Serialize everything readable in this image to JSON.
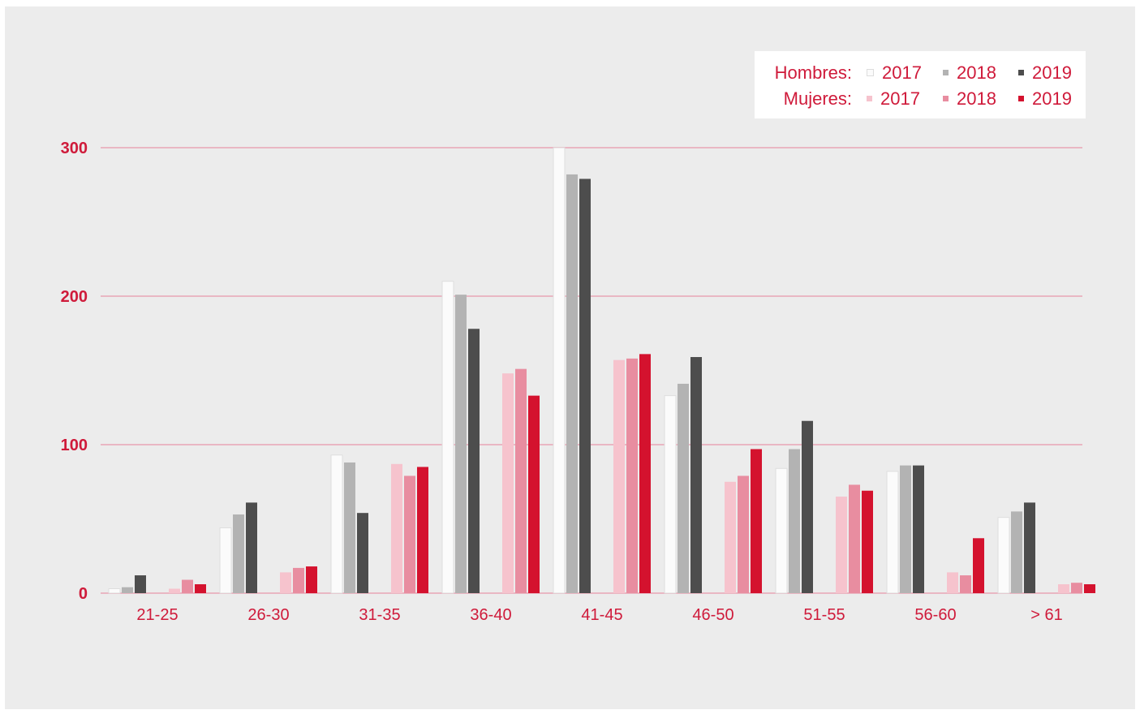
{
  "chart_data": {
    "type": "bar",
    "categories": [
      "21-25",
      "26-30",
      "31-35",
      "36-40",
      "41-45",
      "46-50",
      "51-55",
      "56-60",
      "> 61"
    ],
    "ylim": [
      0,
      300
    ],
    "yticks": [
      "0",
      "100",
      "200",
      "300"
    ],
    "grid": true,
    "legend_position": "top-right",
    "legend": {
      "groups": [
        {
          "label": "Hombres:",
          "items": [
            "2017",
            "2018",
            "2019"
          ]
        },
        {
          "label": "Mujeres:",
          "items": [
            "2017",
            "2018",
            "2019"
          ]
        }
      ]
    },
    "series": [
      {
        "group": "Hombres",
        "year": "2017",
        "color": "#fbfbfb",
        "values": [
          3,
          44,
          93,
          210,
          300,
          133,
          84,
          82,
          51
        ]
      },
      {
        "group": "Hombres",
        "year": "2018",
        "color": "#b3b3b3",
        "values": [
          4,
          53,
          88,
          201,
          282,
          141,
          97,
          86,
          55
        ]
      },
      {
        "group": "Hombres",
        "year": "2019",
        "color": "#4d4d4d",
        "values": [
          12,
          61,
          54,
          178,
          279,
          159,
          116,
          86,
          61
        ]
      },
      {
        "group": "Mujeres",
        "year": "2017",
        "color": "#f6c3cd",
        "values": [
          3,
          14,
          87,
          148,
          157,
          75,
          65,
          14,
          6
        ]
      },
      {
        "group": "Mujeres",
        "year": "2018",
        "color": "#e88da0",
        "values": [
          9,
          17,
          79,
          151,
          158,
          79,
          73,
          12,
          7
        ]
      },
      {
        "group": "Mujeres",
        "year": "2019",
        "color": "#d4122e",
        "values": [
          6,
          18,
          85,
          133,
          161,
          97,
          69,
          37,
          6
        ]
      }
    ],
    "colors": {
      "text": "#cf1a3a",
      "grid": "#e9b7c3",
      "background": "#ececec"
    }
  }
}
